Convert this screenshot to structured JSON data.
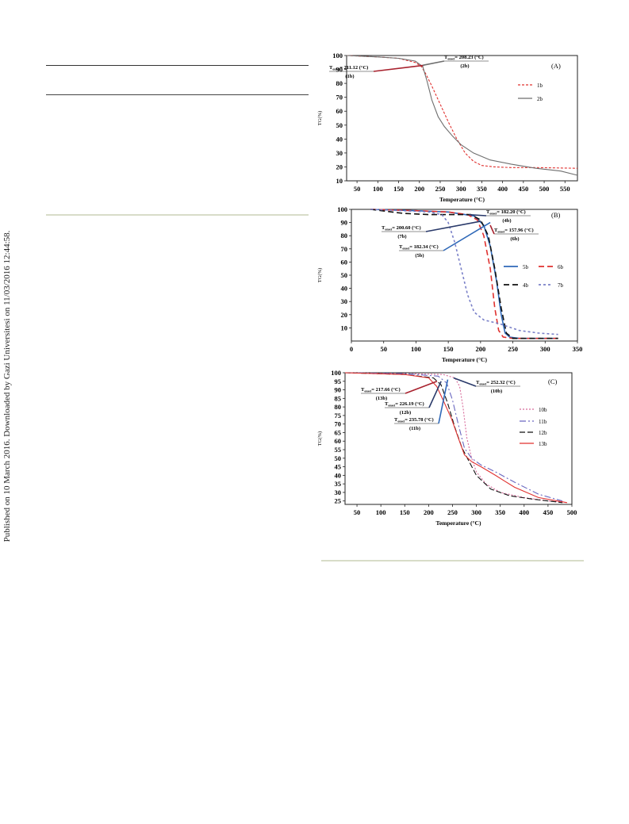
{
  "side_note": "Published on 10 March 2016. Downloaded by Gazi Universitesi on 11/03/2016 12:44:58.",
  "colors": {
    "red": "#e0312f",
    "gray": "#6e6e6e",
    "blue": "#2f68b8",
    "darkred": "#a8222e",
    "navy": "#2a3a6a",
    "violet": "#6a68c0",
    "pink": "#d86a9a",
    "lavender": "#7a80c8",
    "black": "#111111"
  },
  "chart_data": [
    {
      "type": "line",
      "panel_label": "(A)",
      "xlabel": "Temperature (°C)",
      "ylabel": "TG(%)",
      "xlim": [
        25,
        580
      ],
      "ylim": [
        10,
        100
      ],
      "xticks": [
        50,
        100,
        150,
        200,
        250,
        300,
        350,
        400,
        450,
        500,
        550
      ],
      "yticks": [
        10,
        20,
        30,
        40,
        50,
        60,
        70,
        80,
        90,
        100
      ],
      "legend_position": "right",
      "series": [
        {
          "name": "1b",
          "color_key": "red",
          "dash": "3,2",
          "x": [
            25,
            100,
            150,
            190,
            205,
            215,
            230,
            250,
            270,
            290,
            310,
            330,
            350,
            380,
            420,
            480,
            580
          ],
          "y": [
            100,
            99,
            98,
            95,
            92,
            87,
            78,
            65,
            52,
            40,
            30,
            24,
            21,
            20,
            19.5,
            19.5,
            19
          ]
        },
        {
          "name": "2b",
          "color_key": "gray",
          "dash": "",
          "x": [
            25,
            100,
            150,
            190,
            208,
            218,
            230,
            245,
            260,
            280,
            300,
            330,
            370,
            420,
            480,
            540,
            580
          ],
          "y": [
            100,
            99,
            98,
            96,
            92,
            82,
            68,
            56,
            49,
            42,
            36,
            30,
            25,
            22,
            19,
            17,
            14
          ]
        }
      ],
      "annotations": [
        {
          "text": "T",
          "sub": "onset",
          "value": "= 211.12 (°C)",
          "id": "(1b)"
        },
        {
          "text": "T",
          "sub": "onset",
          "value": "= 208.23 (°C)",
          "id": "(2b)"
        }
      ]
    },
    {
      "type": "line",
      "panel_label": "(B)",
      "xlabel": "Temperature (°C)",
      "ylabel": "TG(%)",
      "xlim": [
        0,
        350
      ],
      "ylim": [
        0,
        100
      ],
      "xticks": [
        0,
        50,
        100,
        150,
        200,
        250,
        300,
        350
      ],
      "yticks": [
        10,
        20,
        30,
        40,
        50,
        60,
        70,
        80,
        90,
        100
      ],
      "legend_position": "right",
      "series": [
        {
          "name": "5b",
          "color_key": "blue",
          "dash": "",
          "x": [
            30,
            100,
            150,
            190,
            205,
            215,
            225,
            232,
            238,
            245,
            260,
            320
          ],
          "y": [
            100,
            99,
            98,
            95,
            88,
            72,
            45,
            20,
            6,
            3,
            2,
            2
          ]
        },
        {
          "name": "6b",
          "color_key": "red",
          "dash": "7,4",
          "x": [
            30,
            100,
            150,
            180,
            195,
            205,
            215,
            222,
            228,
            235,
            250,
            320
          ],
          "y": [
            100,
            99,
            98,
            96,
            92,
            80,
            55,
            25,
            8,
            3,
            2,
            2
          ]
        },
        {
          "name": "4b",
          "color_key": "black",
          "dash": "7,4",
          "x": [
            30,
            80,
            120,
            160,
            185,
            200,
            212,
            222,
            232,
            240,
            250,
            320
          ],
          "y": [
            100,
            97,
            96,
            96,
            96,
            92,
            80,
            55,
            25,
            6,
            2,
            2
          ]
        },
        {
          "name": "7b",
          "color_key": "lavender",
          "dash": "3,3",
          "x": [
            30,
            80,
            120,
            140,
            150,
            160,
            170,
            180,
            190,
            205,
            230,
            260,
            290,
            320
          ],
          "y": [
            100,
            99,
            98,
            96,
            90,
            75,
            55,
            35,
            22,
            16,
            13,
            8,
            6,
            5
          ]
        }
      ],
      "annotations": [
        {
          "text": "T",
          "sub": "onset",
          "value": "= 182.20 (°C)",
          "id": "(4b)"
        },
        {
          "text": "T",
          "sub": "onset",
          "value": "= 200.60 (°C)",
          "id": "(7b)"
        },
        {
          "text": "T",
          "sub": "onset",
          "value": "= 157.96 (°C)",
          "id": "(6b)"
        },
        {
          "text": "T",
          "sub": "onset",
          "value": "= 182.34 (°C)",
          "id": "(5b)"
        }
      ]
    },
    {
      "type": "line",
      "panel_label": "(C)",
      "xlabel": "Temperature (°C)",
      "ylabel": "TG(%)",
      "xlim": [
        25,
        500
      ],
      "ylim": [
        23,
        100
      ],
      "xticks": [
        50,
        100,
        150,
        200,
        250,
        300,
        350,
        400,
        450,
        500
      ],
      "yticks": [
        25,
        30,
        35,
        40,
        45,
        50,
        55,
        60,
        65,
        70,
        75,
        80,
        85,
        90,
        95,
        100
      ],
      "legend_position": "right",
      "series": [
        {
          "name": "10b",
          "color_key": "pink",
          "dash": "2,2",
          "x": [
            25,
            150,
            230,
            255,
            265,
            272,
            280,
            290,
            300,
            320,
            350,
            400,
            450,
            490
          ],
          "y": [
            100,
            99.5,
            99,
            97,
            92,
            80,
            62,
            50,
            42,
            35,
            30,
            27,
            25,
            24
          ]
        },
        {
          "name": "11b",
          "color_key": "violet",
          "dash": "8,3,2,3",
          "x": [
            25,
            150,
            220,
            238,
            250,
            262,
            275,
            290,
            310,
            340,
            380,
            430,
            480
          ],
          "y": [
            100,
            99.5,
            98,
            94,
            84,
            70,
            56,
            50,
            46,
            42,
            36,
            29,
            25
          ]
        },
        {
          "name": "12b",
          "color_key": "black",
          "dash": "7,3",
          "x": [
            25,
            150,
            210,
            226,
            240,
            255,
            270,
            285,
            300,
            330,
            370,
            420,
            480
          ],
          "y": [
            100,
            99,
            97,
            93,
            82,
            68,
            56,
            48,
            40,
            32,
            28,
            26,
            24
          ]
        },
        {
          "name": "13b",
          "color_key": "red",
          "dash": "",
          "x": [
            25,
            150,
            200,
            217,
            232,
            248,
            262,
            275,
            290,
            310,
            340,
            380,
            430,
            490
          ],
          "y": [
            100,
            99,
            97,
            92,
            83,
            73,
            62,
            52,
            48,
            45,
            40,
            33,
            27,
            24
          ]
        }
      ],
      "annotations": [
        {
          "text": "T",
          "sub": "onset",
          "value": "= 252.32 (°C)",
          "id": "(10b)"
        },
        {
          "text": "T",
          "sub": "onset",
          "value": "= 217.66 (°C)",
          "id": "(13b)"
        },
        {
          "text": "T",
          "sub": "onset",
          "value": "= 226.19 (°C)",
          "id": "(12b)"
        },
        {
          "text": "T",
          "sub": "onset",
          "value": "= 235.78 (°C)",
          "id": "(11b)"
        }
      ]
    }
  ]
}
